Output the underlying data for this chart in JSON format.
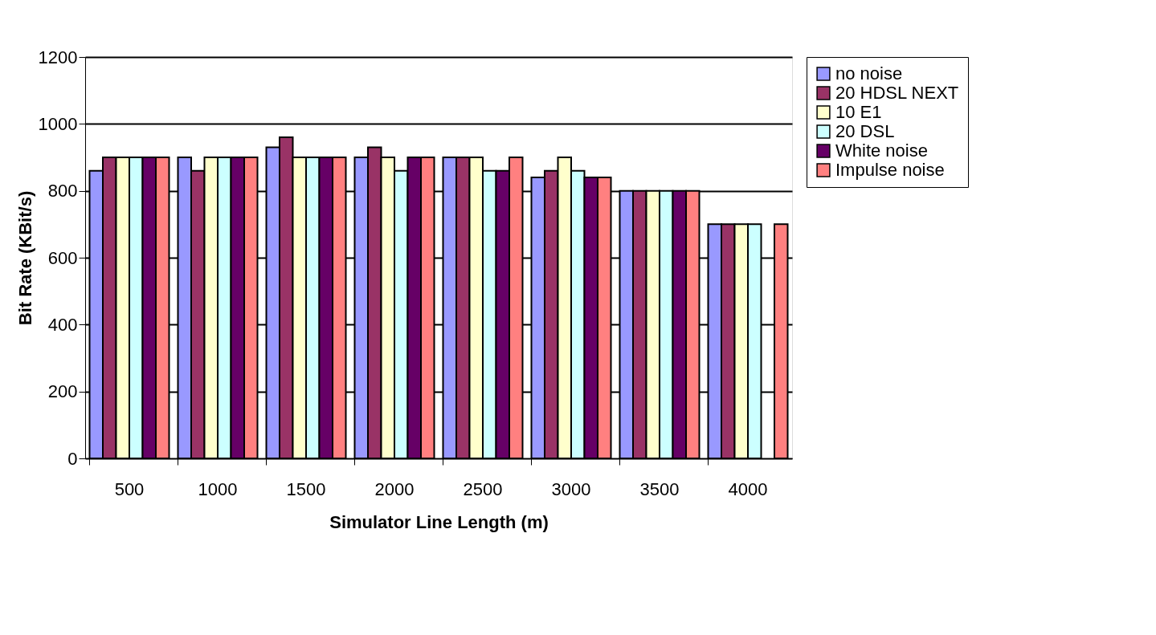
{
  "chart_data": {
    "type": "bar",
    "xlabel": "Simulator Line Length (m)",
    "ylabel": "Bit Rate  (KBit/s)",
    "categories": [
      "500",
      "1000",
      "1500",
      "2000",
      "2500",
      "3000",
      "3500",
      "4000"
    ],
    "series": [
      {
        "name": "no noise",
        "color": "#9999ff",
        "values": [
          860,
          900,
          930,
          900,
          900,
          840,
          800,
          700
        ]
      },
      {
        "name": "20 HDSL NEXT",
        "color": "#993366",
        "values": [
          900,
          860,
          960,
          930,
          900,
          860,
          800,
          700
        ]
      },
      {
        "name": "10 E1",
        "color": "#ffffcc",
        "values": [
          900,
          900,
          900,
          900,
          900,
          900,
          800,
          700
        ]
      },
      {
        "name": "20 DSL",
        "color": "#ccffff",
        "values": [
          900,
          900,
          900,
          860,
          860,
          860,
          800,
          700
        ]
      },
      {
        "name": "White noise",
        "color": "#660066",
        "values": [
          900,
          900,
          900,
          900,
          860,
          840,
          800,
          null
        ]
      },
      {
        "name": "Impulse noise",
        "color": "#ff8080",
        "values": [
          900,
          900,
          900,
          900,
          900,
          840,
          800,
          700
        ]
      }
    ],
    "ylim": [
      0,
      1200
    ],
    "yticks": [
      0,
      200,
      400,
      600,
      800,
      1000,
      1200
    ],
    "grid": "y",
    "legend": "right"
  }
}
